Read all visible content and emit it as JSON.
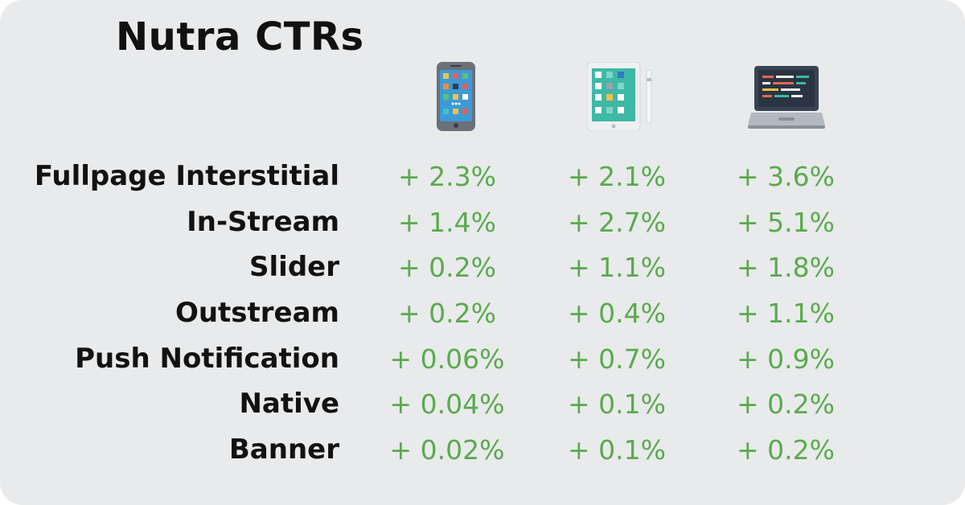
{
  "chart_data": {
    "type": "table",
    "title": "Nutra CTRs",
    "columns": [
      {
        "icon": "smartphone-icon"
      },
      {
        "icon": "tablet-icon"
      },
      {
        "icon": "laptop-icon"
      }
    ],
    "rows": [
      {
        "label": "Fullpage Interstitial",
        "cells": [
          "+ 2.3%",
          "+ 2.1%",
          "+ 3.6%"
        ]
      },
      {
        "label": "In-Stream",
        "cells": [
          "+ 1.4%",
          "+ 2.7%",
          "+ 5.1%"
        ]
      },
      {
        "label": "Slider",
        "cells": [
          "+ 0.2%",
          "+ 1.1%",
          "+ 1.8%"
        ]
      },
      {
        "label": "Outstream",
        "cells": [
          "+ 0.2%",
          "+ 0.4%",
          "+ 1.1%"
        ]
      },
      {
        "label": "Push Notification",
        "cells": [
          "+ 0.06%",
          "+ 0.7%",
          "+ 0.9%"
        ]
      },
      {
        "label": "Native",
        "cells": [
          "+ 0.04%",
          "+ 0.1%",
          "+ 0.2%"
        ]
      },
      {
        "label": "Banner",
        "cells": [
          "+ 0.02%",
          "+ 0.1%",
          "+ 0.2%"
        ]
      }
    ],
    "colors": {
      "background": "#e9eaeb",
      "label_text": "#121212",
      "value_text": "#5aaa4e"
    }
  }
}
